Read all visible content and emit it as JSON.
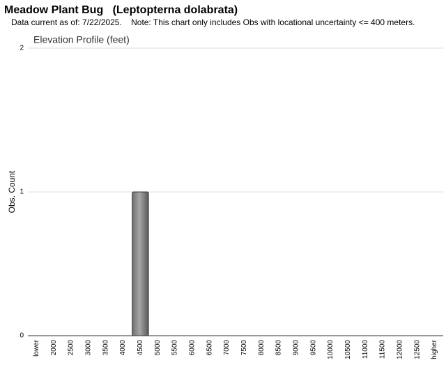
{
  "chart_data": {
    "type": "bar",
    "title": "Meadow Plant Bug   (Leptopterna dolabrata)",
    "subtitle": "Data current as of: 7/22/2025.    Note: This chart only includes Obs with locational uncertainty <= 400 meters.",
    "chart_title": "Elevation Profile (feet)",
    "y_label": "Obs. Count",
    "categories": [
      "lower",
      "2000",
      "2500",
      "3000",
      "3500",
      "4000",
      "4500",
      "5000",
      "5500",
      "6000",
      "6500",
      "7000",
      "7500",
      "8000",
      "8500",
      "9000",
      "9500",
      "10000",
      "10500",
      "11000",
      "11500",
      "12000",
      "12500",
      "higher"
    ],
    "values": [
      0,
      0,
      0,
      0,
      0,
      0,
      1,
      0,
      0,
      0,
      0,
      0,
      0,
      0,
      0,
      0,
      0,
      0,
      0,
      0,
      0,
      0,
      0,
      0
    ],
    "color": "#a6a6a6",
    "ylim": [
      0,
      2
    ],
    "yticks": [
      0,
      1,
      2
    ],
    "grid": true
  }
}
